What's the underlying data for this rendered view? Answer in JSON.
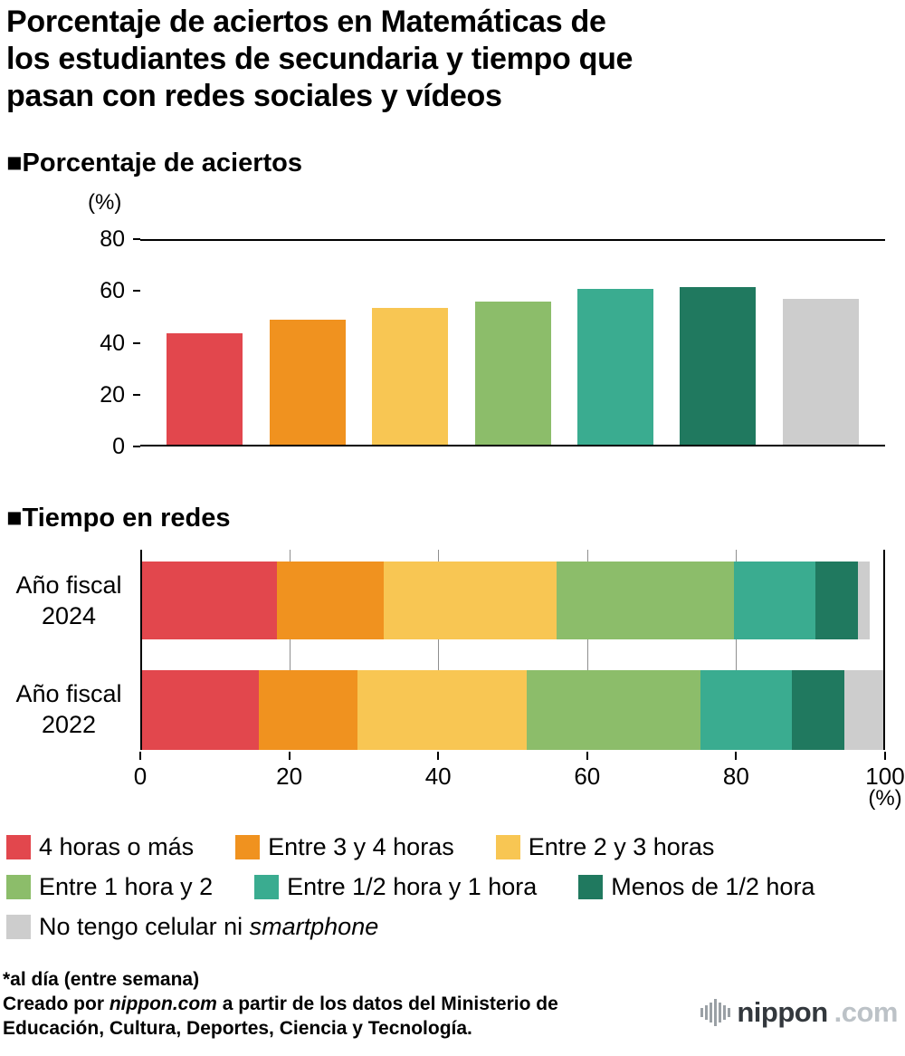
{
  "page_title_lines": [
    "Porcentaje de aciertos en Matemáticas de",
    "los estudiantes de secundaria y tiempo que",
    "pasan con redes sociales y vídeos"
  ],
  "palette": [
    "#e2474d",
    "#f0921f",
    "#f8c653",
    "#8cbd6a",
    "#3aac90",
    "#20795f",
    "#cdcdcd"
  ],
  "section_accuracy": {
    "heading": "■Porcentaje de aciertos",
    "unit": "(%)"
  },
  "section_time": {
    "heading": "■Tiempo en redes",
    "unit": "(%)"
  },
  "chart_data": [
    {
      "type": "bar",
      "title": "Porcentaje de aciertos",
      "ylabel": "(%)",
      "categories": [
        "4 horas o más",
        "Entre 3 y 4 horas",
        "Entre 2 y 3 horas",
        "Entre 1 hora y 2",
        "Entre 1/2 hora y 1 hora",
        "Menos de 1/2 hora",
        "No tengo celular ni smartphone"
      ],
      "values": [
        43.6,
        49.0,
        53.7,
        56.3,
        61.0,
        62.0,
        57.4
      ],
      "ylim": [
        0,
        80
      ],
      "yticks": [
        0,
        20,
        40,
        60,
        80
      ],
      "grid": "line at top (80) and baseline (0) only"
    },
    {
      "type": "stacked-bar-horizontal",
      "title": "Tiempo en redes",
      "xlabel": "(%)",
      "xlim": [
        0,
        100
      ],
      "xticks": [
        0,
        20,
        40,
        60,
        80,
        100
      ],
      "categories": [
        "4 horas o más",
        "Entre 3 y 4 horas",
        "Entre 2 y 3 horas",
        "Entre 1 hora y 2",
        "Entre 1/2 hora y 1 hora",
        "Menos de 1/2 hora",
        "No tengo celular ni smartphone"
      ],
      "rows": [
        {
          "label": "Año fiscal 2024",
          "label_lines": [
            "Año fiscal",
            "2024"
          ],
          "values": [
            18.2,
            14.4,
            23.3,
            23.9,
            11.0,
            5.8,
            1.6
          ]
        },
        {
          "label": "Año fiscal 2022",
          "label_lines": [
            "Año fiscal",
            "2022"
          ],
          "values": [
            15.8,
            13.3,
            22.8,
            23.4,
            12.4,
            7.1,
            5.2
          ]
        }
      ],
      "legend_position": "below"
    }
  ],
  "legend": {
    "rows": [
      [
        {
          "color_index": 0,
          "label": "4 horas o más"
        },
        {
          "color_index": 1,
          "label": "Entre 3 y 4 horas"
        },
        {
          "color_index": 2,
          "label": "Entre 2 y 3 horas"
        }
      ],
      [
        {
          "color_index": 3,
          "label": "Entre 1 hora y 2"
        },
        {
          "color_index": 4,
          "label": "Entre 1/2 hora y 1 hora"
        },
        {
          "color_index": 5,
          "label": "Menos de 1/2 hora"
        }
      ],
      [
        {
          "color_index": 6,
          "label": "No tengo celular ni ",
          "label_italic": "smartphone"
        }
      ]
    ]
  },
  "footer": {
    "note": "*al día (entre semana)",
    "credit_prefix": "Creado por ",
    "credit_source": "nippon.com",
    "credit_line1_rest": " a partir de los datos del Ministerio de",
    "credit_line2": "Educación, Cultura, Deportes, Ciencia y Tecnología."
  },
  "logo": {
    "brand": "nippon",
    "tld": ".com"
  }
}
